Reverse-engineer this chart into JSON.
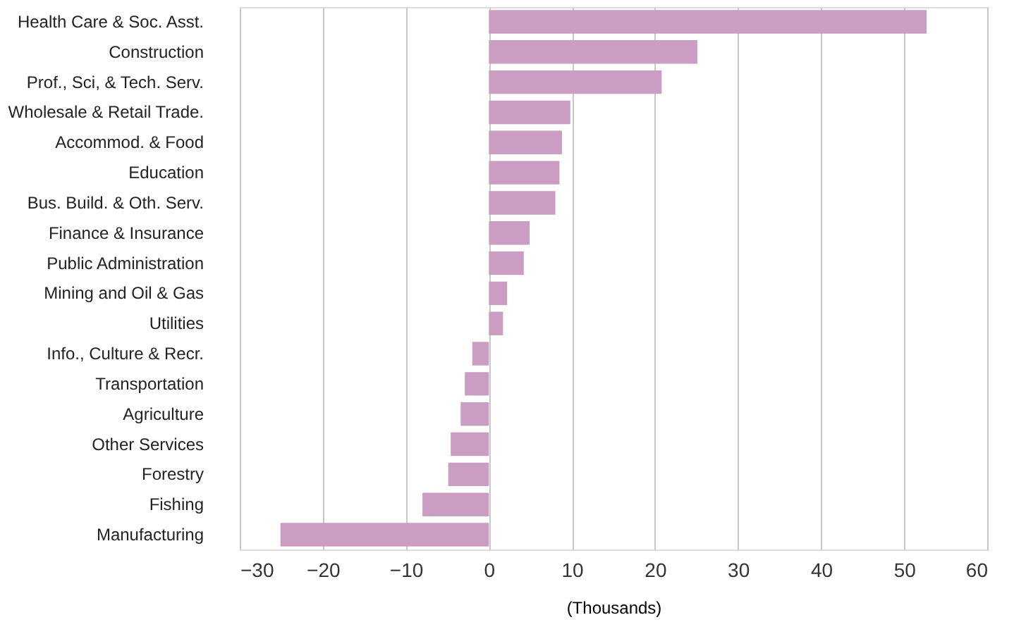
{
  "chart_data": {
    "type": "bar",
    "orientation": "horizontal",
    "xlabel": "(Thousands)",
    "categories": [
      "Health Care & Soc. Asst.",
      "Construction",
      "Prof., Sci, & Tech. Serv.",
      "Wholesale & Retail Trade.",
      "Accommod. & Food",
      "Education",
      "Bus. Build. & Oth. Serv.",
      "Finance & Insurance",
      "Public Administration",
      "Mining and Oil & Gas",
      "Utilities",
      "Info., Culture & Recr.",
      "Transportation",
      "Agriculture",
      "Other Services",
      "Forestry",
      "Fishing",
      "Manufacturing"
    ],
    "values": [
      52.7,
      25.1,
      20.8,
      9.8,
      8.8,
      8.5,
      8.0,
      4.9,
      4.2,
      2.2,
      1.7,
      -2.0,
      -2.9,
      -3.4,
      -4.6,
      -4.9,
      -8.0,
      -25.1
    ],
    "color": "#cc9dc3",
    "xlim": [
      -30,
      60
    ],
    "xticks": [
      -30,
      -20,
      -10,
      0,
      10,
      20,
      30,
      40,
      50,
      60
    ],
    "grid": "x"
  }
}
